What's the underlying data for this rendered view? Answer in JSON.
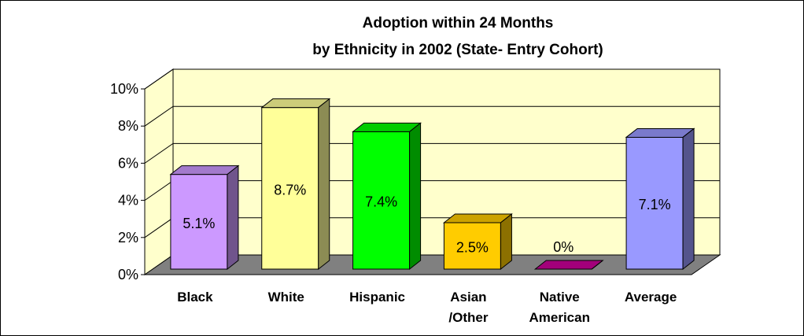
{
  "chart_data": {
    "type": "bar",
    "title": "Adoption within 24 Months",
    "subtitle": "by Ethnicity in 2002 (State- Entry Cohort)",
    "categories": [
      "Black",
      "White",
      "Hispanic",
      "Asian /Other",
      "Native American",
      "Average"
    ],
    "category_lines": [
      [
        "Black"
      ],
      [
        "White"
      ],
      [
        "Hispanic"
      ],
      [
        "Asian",
        "/Other"
      ],
      [
        "Native",
        "American"
      ],
      [
        "Average"
      ]
    ],
    "values": [
      5.1,
      8.7,
      7.4,
      2.5,
      0,
      7.1
    ],
    "data_labels": [
      "5.1%",
      "8.7%",
      "7.4%",
      "2.5%",
      "0%",
      "7.1%"
    ],
    "ylim": [
      0,
      10
    ],
    "y_ticks": [
      "0%",
      "2%",
      "4%",
      "6%",
      "8%",
      "10%"
    ],
    "grid": true,
    "legend": "none",
    "bar_colors": [
      "#CC99FF",
      "#FFFF99",
      "#00FF00",
      "#FFCC00",
      "#CC0099",
      "#9999FF"
    ],
    "wall_color": "#FFFFCC",
    "floor_color": "#808080"
  }
}
